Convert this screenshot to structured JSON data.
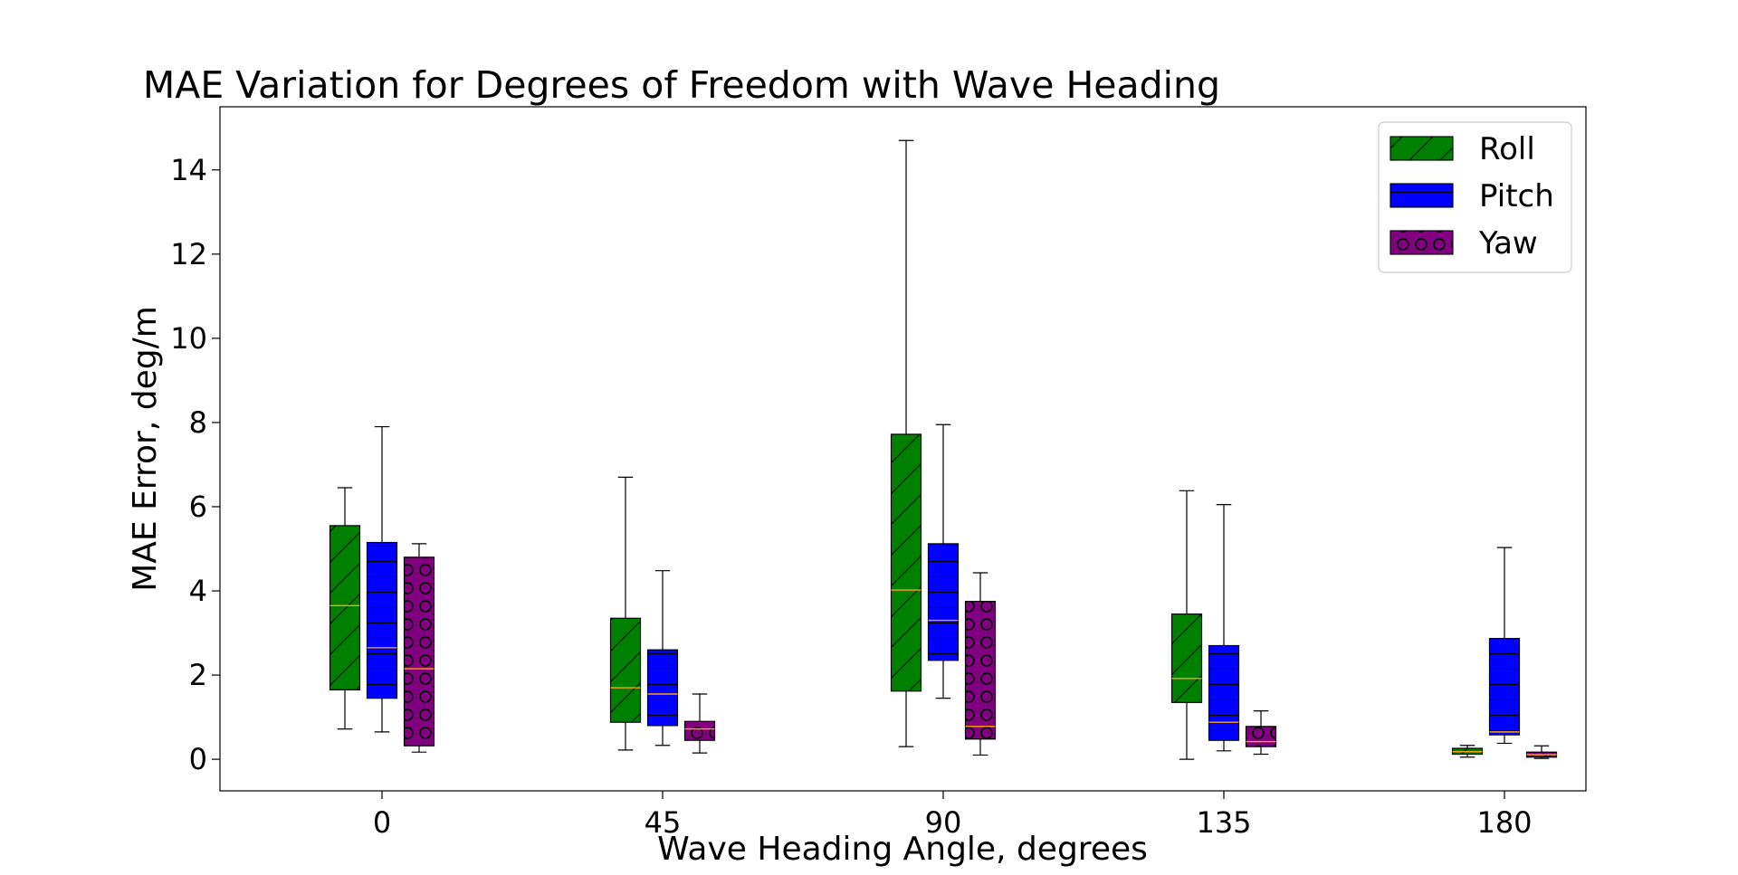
{
  "chart_data": {
    "type": "box",
    "title": "MAE Variation for Degrees of Freedom with Wave Heading",
    "xlabel": "Wave Heading Angle, degrees",
    "ylabel": "MAE Error, deg/m",
    "categories": [
      "0",
      "45",
      "90",
      "135",
      "180"
    ],
    "yticks": [
      0,
      2,
      4,
      6,
      8,
      10,
      12,
      14
    ],
    "ylim": [
      -0.75,
      15.5
    ],
    "grid": false,
    "legend_position": "top-right",
    "series": [
      {
        "name": "Roll",
        "color": "#008000",
        "hatch": "diagonal",
        "boxes": [
          {
            "whislo": 0.72,
            "q1": 1.65,
            "med": 3.65,
            "q3": 5.55,
            "whishi": 6.45
          },
          {
            "whislo": 0.22,
            "q1": 0.88,
            "med": 1.7,
            "q3": 3.35,
            "whishi": 6.7
          },
          {
            "whislo": 0.3,
            "q1": 1.62,
            "med": 4.02,
            "q3": 7.72,
            "whishi": 14.7
          },
          {
            "whislo": 0.0,
            "q1": 1.35,
            "med": 1.92,
            "q3": 3.45,
            "whishi": 6.38
          },
          {
            "whislo": 0.05,
            "q1": 0.12,
            "med": 0.18,
            "q3": 0.26,
            "whishi": 0.33
          }
        ]
      },
      {
        "name": "Pitch",
        "color": "#0000ff",
        "hatch": "horizontal",
        "boxes": [
          {
            "whislo": 0.65,
            "q1": 1.45,
            "med": 2.65,
            "q3": 5.15,
            "whishi": 7.9
          },
          {
            "whislo": 0.33,
            "q1": 0.8,
            "med": 1.55,
            "q3": 2.6,
            "whishi": 4.48
          },
          {
            "whislo": 1.45,
            "q1": 2.35,
            "med": 3.3,
            "q3": 5.12,
            "whishi": 7.95
          },
          {
            "whislo": 0.2,
            "q1": 0.45,
            "med": 0.88,
            "q3": 2.7,
            "whishi": 6.05
          },
          {
            "whislo": 0.38,
            "q1": 0.58,
            "med": 0.65,
            "q3": 2.87,
            "whishi": 5.03
          }
        ]
      },
      {
        "name": "Yaw",
        "color": "#800080",
        "hatch": "circles",
        "boxes": [
          {
            "whislo": 0.17,
            "q1": 0.32,
            "med": 2.15,
            "q3": 4.8,
            "whishi": 5.12
          },
          {
            "whislo": 0.15,
            "q1": 0.45,
            "med": 0.72,
            "q3": 0.9,
            "whishi": 1.55
          },
          {
            "whislo": 0.1,
            "q1": 0.48,
            "med": 0.78,
            "q3": 3.75,
            "whishi": 4.43
          },
          {
            "whislo": 0.12,
            "q1": 0.3,
            "med": 0.42,
            "q3": 0.78,
            "whishi": 1.15
          },
          {
            "whislo": 0.02,
            "q1": 0.05,
            "med": 0.11,
            "q3": 0.17,
            "whishi": 0.32
          }
        ]
      }
    ],
    "median_color": "#ffa500"
  }
}
